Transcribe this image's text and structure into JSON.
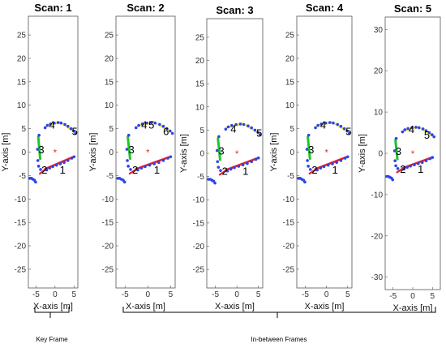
{
  "captions": {
    "key_frame": "Key Frame",
    "in_between": "In-between Frames"
  },
  "colors": {
    "blue": "#2e44e6",
    "green": "#20c428",
    "yellow": "#f2e53a",
    "red": "#e8202a",
    "origin": "#e02020"
  },
  "chart_data": [
    {
      "type": "scatter",
      "title": "Scan: 1",
      "xlabel": "X-axis [m]",
      "ylabel": "Y-axis [m]",
      "xlim": [
        -7,
        6
      ],
      "ylim": [
        -29,
        29
      ],
      "xticks": [
        -5,
        0,
        5
      ],
      "yticks": [
        -25,
        -20,
        -15,
        -10,
        -5,
        0,
        5,
        10,
        15,
        20,
        25
      ],
      "landmarks": [
        {
          "label": "1",
          "x": 2.0,
          "y": -3.8
        },
        {
          "label": "2",
          "x": -2.8,
          "y": -3.8
        },
        {
          "label": "3",
          "x": -3.6,
          "y": 0.5
        },
        {
          "label": "4",
          "x": -0.8,
          "y": 5.8
        },
        {
          "label": "5",
          "x": 5.2,
          "y": 4.4
        }
      ]
    },
    {
      "type": "scatter",
      "title": "Scan: 2",
      "xlabel": "X-axis [m]",
      "ylabel": "Y-axis [m]",
      "xlim": [
        -7,
        6
      ],
      "ylim": [
        -29,
        29
      ],
      "xticks": [
        -5,
        0,
        5
      ],
      "yticks": [
        -25,
        -20,
        -15,
        -10,
        -5,
        0,
        5,
        10,
        15,
        20,
        25
      ],
      "landmarks": [
        {
          "label": "1",
          "x": 2.0,
          "y": -3.8
        },
        {
          "label": "2",
          "x": -2.8,
          "y": -3.8
        },
        {
          "label": "3",
          "x": -3.6,
          "y": 0.5
        },
        {
          "label": "4",
          "x": -0.8,
          "y": 5.8
        },
        {
          "label": "5",
          "x": 0.8,
          "y": 5.8
        },
        {
          "label": "6",
          "x": 4.0,
          "y": 4.4
        }
      ]
    },
    {
      "type": "scatter",
      "title": "Scan: 3",
      "xlabel": "X-axis [m]",
      "ylabel": "Y-axis [m]",
      "xlim": [
        -7,
        6
      ],
      "ylim": [
        -29,
        29
      ],
      "xticks": [
        -5,
        0,
        5
      ],
      "yticks": [
        -25,
        -20,
        -15,
        -10,
        -5,
        0,
        5,
        10,
        15,
        20,
        25
      ],
      "landmarks": [
        {
          "label": "1",
          "x": 2.0,
          "y": -3.8
        },
        {
          "label": "2",
          "x": -2.8,
          "y": -3.8
        },
        {
          "label": "3",
          "x": -3.6,
          "y": 0.5
        },
        {
          "label": "4",
          "x": -0.8,
          "y": 5.2
        },
        {
          "label": "5",
          "x": 5.2,
          "y": 4.4
        }
      ]
    },
    {
      "type": "scatter",
      "title": "Scan: 4",
      "xlabel": "X-axis [m]",
      "ylabel": "Y-axis [m]",
      "xlim": [
        -7,
        6
      ],
      "ylim": [
        -29,
        29
      ],
      "xticks": [
        -5,
        0,
        5
      ],
      "yticks": [
        -25,
        -20,
        -15,
        -10,
        -5,
        0,
        5,
        10,
        15,
        20,
        25
      ],
      "landmarks": [
        {
          "label": "1",
          "x": 2.0,
          "y": -3.8
        },
        {
          "label": "2",
          "x": -2.8,
          "y": -3.8
        },
        {
          "label": "3",
          "x": -3.6,
          "y": 0.5
        },
        {
          "label": "4",
          "x": -0.8,
          "y": 5.8
        },
        {
          "label": "5",
          "x": 5.2,
          "y": 4.4
        }
      ]
    },
    {
      "type": "scatter",
      "title": "Scan: 5",
      "xlabel": "X-axis [m]",
      "ylabel": "Y-axis [m]",
      "xlim": [
        -7,
        7
      ],
      "ylim": [
        -33,
        33
      ],
      "xticks": [
        -5,
        0,
        5
      ],
      "yticks": [
        -30,
        -20,
        -10,
        0,
        10,
        20,
        30
      ],
      "landmarks": [
        {
          "label": "1",
          "x": 2.0,
          "y": -3.8
        },
        {
          "label": "2",
          "x": -2.5,
          "y": -3.8
        },
        {
          "label": "3",
          "x": -3.6,
          "y": 0.5
        },
        {
          "label": "4",
          "x": -0.3,
          "y": 5.8
        },
        {
          "label": "5",
          "x": 3.6,
          "y": 4.4
        }
      ]
    }
  ]
}
